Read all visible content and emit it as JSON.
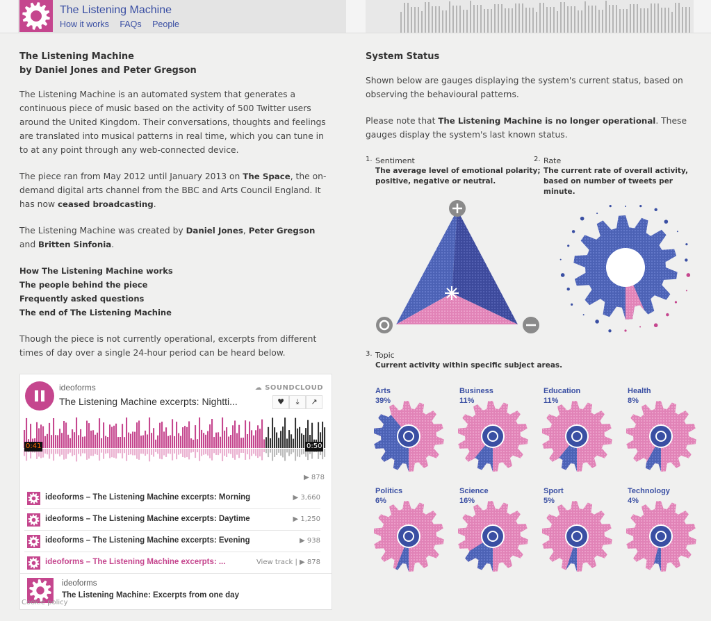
{
  "header": {
    "title": "The Listening Machine",
    "nav": [
      "How it works",
      "FAQs",
      "People"
    ]
  },
  "intro": {
    "title": "The Listening Machine",
    "byline": "by Daniel Jones and Peter Gregson",
    "p1": "The Listening Machine is an automated system that generates a continuous piece of music based on the activity of 500 Twitter users around the United Kingdom. Their conversations, thoughts and feelings are translated into musical patterns in real time, which you can tune in to at any point through any web-connected device.",
    "p2a": "The piece ran from May 2012 until January 2013 on ",
    "p2b": "The Space",
    "p2c": ", the on-demand digital arts channel from the BBC and Arts Council England. It has now ",
    "p2d": "ceased broadcasting",
    "p2e": ".",
    "p3a": "The Listening Machine was created by ",
    "p3b": "Daniel Jones",
    "p3c": ", ",
    "p3d": "Peter Gregson",
    "p3e": " and ",
    "p3f": "Britten Sinfonia",
    "p3g": ".",
    "links": [
      "How The Listening Machine works",
      "The people behind the piece",
      "Frequently asked questions",
      "The end of The Listening Machine"
    ],
    "p4": "Though the piece is not currently operational, excerpts from different times of day over a single 24-hour period can be heard below."
  },
  "soundcloud": {
    "user": "ideoforms",
    "brand": "SOUNDCLOUD",
    "track": "The Listening Machine excerpts: Nightti...",
    "elapsed": "0:41",
    "duration": "0:50",
    "plays": "878",
    "played_fraction": 0.8,
    "tracks": [
      {
        "title": "ideoforms – The Listening Machine excerpts: Morning",
        "count": "3,660"
      },
      {
        "title": "ideoforms – The Listening Machine excerpts: Daytime",
        "count": "1,250"
      },
      {
        "title": "ideoforms – The Listening Machine excerpts: Evening",
        "count": "938"
      },
      {
        "title": "ideoforms – The Listening Machine excerpts: ...",
        "count": "878",
        "view": "View track"
      }
    ],
    "footer_user": "ideoforms",
    "footer_set": "The Listening Machine: Excerpts from one day",
    "cookie": "Cookie policy"
  },
  "status": {
    "title": "System Status",
    "p1": "Shown below are gauges displaying the system's current status, based on observing the behavioural patterns.",
    "p2a": "Please note that ",
    "p2b": "The Listening Machine is no longer operational",
    "p2c": ". These gauges display the system's last known status.",
    "sentiment": {
      "num": "1.",
      "name": "Sentiment",
      "desc": "The average level of emotional polarity; positive, negative or neutral."
    },
    "rate": {
      "num": "2.",
      "name": "Rate",
      "desc": "The current rate of overall activity, based on number of tweets per minute."
    },
    "topic": {
      "num": "3.",
      "name": "Topic",
      "desc": "Current activity within specific subject areas."
    },
    "topics": [
      {
        "name": "Arts",
        "pct": "39%",
        "value": 39,
        "icon": "film-icon"
      },
      {
        "name": "Business",
        "pct": "11%",
        "value": 11,
        "icon": "trend-icon"
      },
      {
        "name": "Education",
        "pct": "11%",
        "value": 11,
        "icon": "book-icon"
      },
      {
        "name": "Health",
        "pct": "8%",
        "value": 8,
        "icon": "medical-icon"
      },
      {
        "name": "Politics",
        "pct": "6%",
        "value": 6,
        "icon": "rosette-icon"
      },
      {
        "name": "Science",
        "pct": "16%",
        "value": 16,
        "icon": "flask-icon"
      },
      {
        "name": "Sport",
        "pct": "5%",
        "value": 5,
        "icon": "ball-icon"
      },
      {
        "name": "Technology",
        "pct": "4%",
        "value": 4,
        "icon": "wifi-icon"
      }
    ],
    "rate_value": 0.7,
    "colors": {
      "blue": "#4c62b5",
      "pink": "#e183b7",
      "magenta": "#c5468e",
      "grey": "#8a8a8a"
    }
  }
}
